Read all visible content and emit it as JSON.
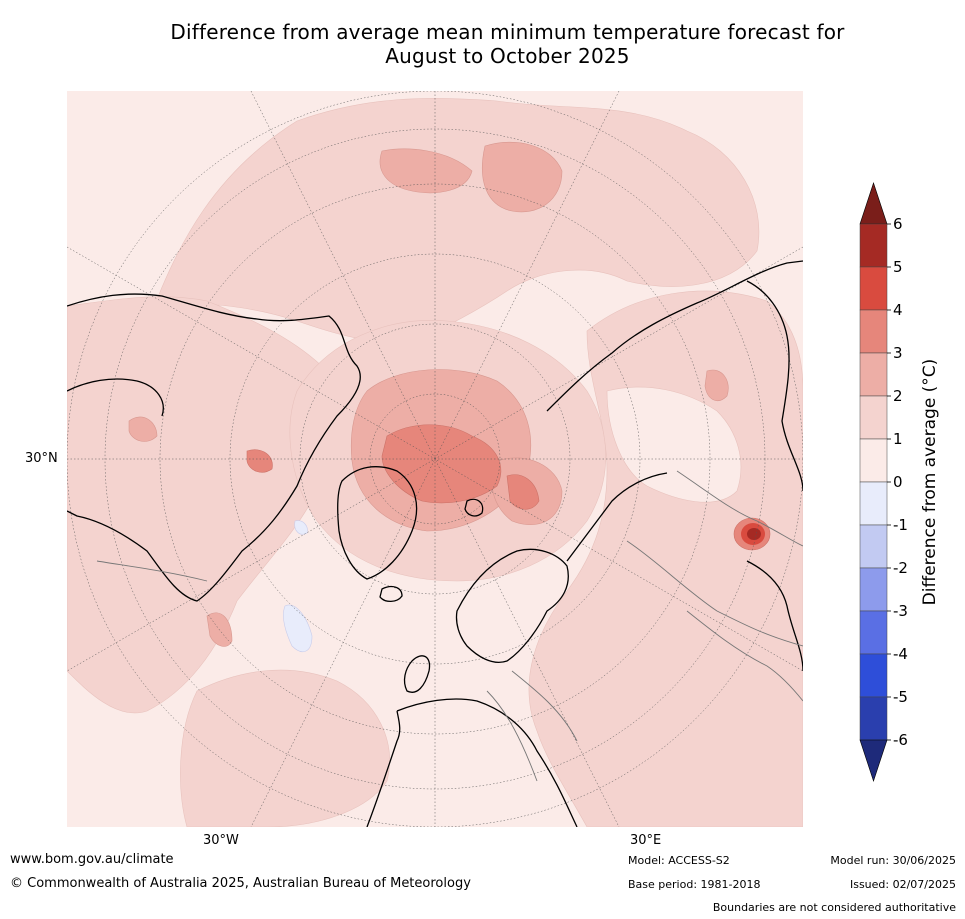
{
  "title": {
    "line1": "Difference from average mean minimum temperature forecast for",
    "line2": "August to October 2025"
  },
  "map": {
    "projection": "north-polar-stereographic",
    "lat_label": "30°N",
    "lon_labels": [
      "30°W",
      "30°E"
    ],
    "regions": [
      {
        "name": "central-arctic-anomaly",
        "level": "3 to 4"
      },
      {
        "name": "greenland-sea-anomaly",
        "level": "2 to 3"
      },
      {
        "name": "east-asia-hotspot",
        "level": "4 to 6"
      },
      {
        "name": "north-atlantic-cool-patch",
        "level": "-1 to 0"
      }
    ]
  },
  "colorbar": {
    "label": "Difference from average (°C)",
    "ticks": [
      "6",
      "5",
      "4",
      "3",
      "2",
      "1",
      "0",
      "-1",
      "-2",
      "-3",
      "-4",
      "-5",
      "-6"
    ],
    "colors": [
      "#a52a24",
      "#d94b3f",
      "#e6867b",
      "#edaea6",
      "#f4d3cf",
      "#fbebe8",
      "#e8ecfb",
      "#c2caf2",
      "#8d9bec",
      "#5a6fe4",
      "#2e4ed9",
      "#2a3fae"
    ],
    "top_arrow_color": "#7a1e1a",
    "bottom_arrow_color": "#1e2a7a"
  },
  "footer": {
    "website": "www.bom.gov.au/climate",
    "copyright": "© Commonwealth of Australia 2025, Australian Bureau of Meteorology",
    "model": "Model: ACCESS-S2",
    "base_period": "Base period: 1981-2018",
    "model_run": "Model run: 30/06/2025",
    "issued": "Issued: 02/07/2025",
    "disclaimer": "Boundaries are not considered authoritative"
  }
}
